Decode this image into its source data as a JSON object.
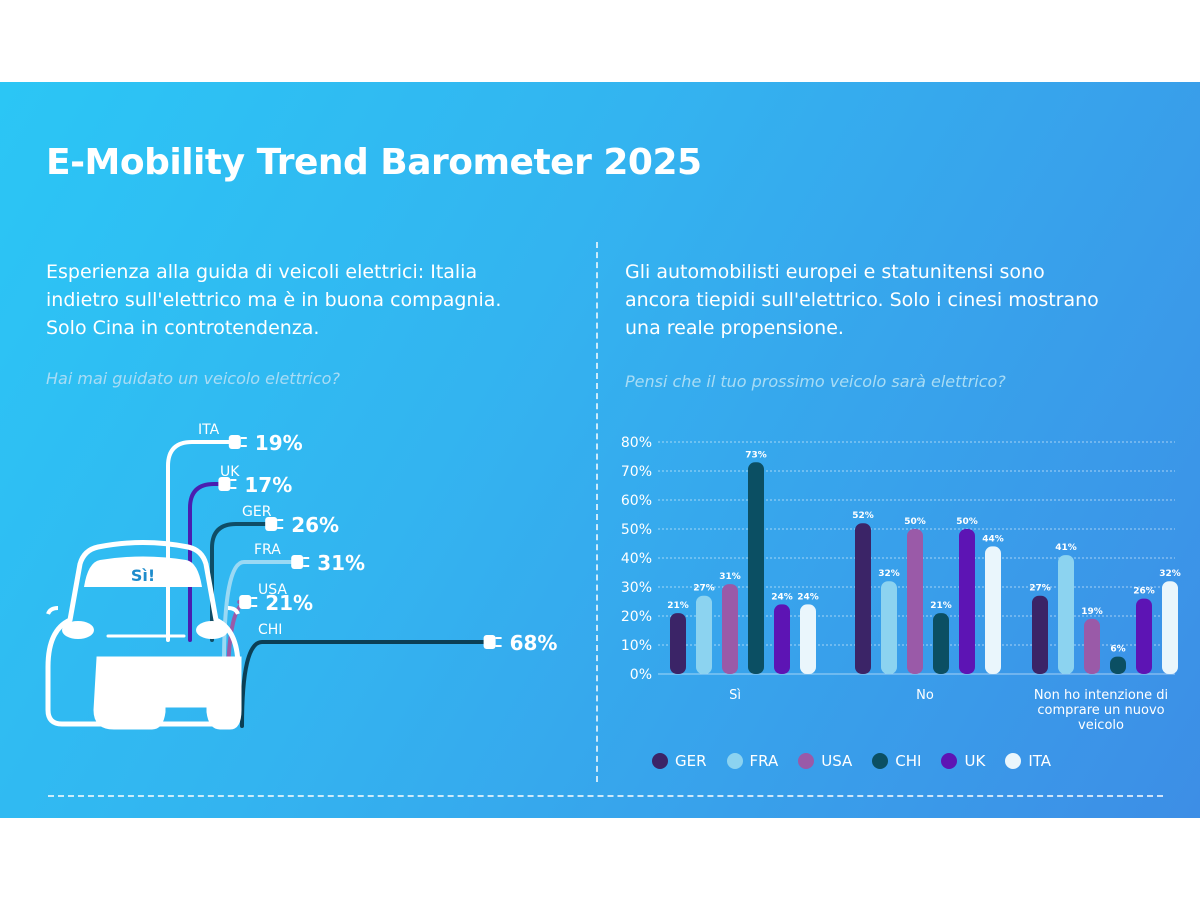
{
  "title": "E-Mobility Trend Barometer 2025",
  "left": {
    "subtitle_lines": [
      "Esperienza alla guida di veicoli elettrici: Italia",
      "indietro sull'elettrico ma è in buona compagnia.",
      "Solo Cina in controtendenza."
    ],
    "question": "Hai mai guidato un veicolo elettrico?",
    "car_label": "Sì!"
  },
  "right": {
    "subtitle_lines": [
      "Gli automobilisti europei e statunitensi sono",
      "ancora tiepidi sull'elettrico. Solo i cinesi mostrano",
      "una reale propensione."
    ],
    "question": "Pensi che il tuo prossimo veicolo sarà elettrico?"
  },
  "colors": {
    "GER": "#3b2467",
    "FRA": "#8cd3f0",
    "USA": "#9a5aa8",
    "CHI": "#0b4f63",
    "UK": "#5d14b4",
    "ITA": "#eaf6fc"
  },
  "chart_data": [
    {
      "type": "bar",
      "title": "Hai mai guidato un veicolo elettrico?",
      "categories": [
        "ITA",
        "UK",
        "GER",
        "FRA",
        "USA",
        "CHI"
      ],
      "values": [
        19,
        17,
        26,
        31,
        21,
        68
      ],
      "value_labels": [
        "19%",
        "17%",
        "26%",
        "31%",
        "21%",
        "68%"
      ],
      "line_colors": [
        "#ffffff",
        "#4a1eb0",
        "#0f4d66",
        "#9ad9f4",
        "#9a5aa8",
        "#0b3f55"
      ]
    },
    {
      "type": "bar",
      "title": "Pensi che il tuo prossimo veicolo sarà elettrico?",
      "categories": [
        "Sì",
        "No",
        "Non ho intenzione di comprare un nuovo veicolo"
      ],
      "category_lines": [
        [
          "Sì"
        ],
        [
          "No"
        ],
        [
          "Non ho intenzione di",
          "comprare un nuovo",
          "veicolo"
        ]
      ],
      "series": [
        {
          "name": "GER",
          "values": [
            21,
            52,
            27
          ]
        },
        {
          "name": "FRA",
          "values": [
            27,
            32,
            41
          ]
        },
        {
          "name": "USA",
          "values": [
            31,
            50,
            19
          ]
        },
        {
          "name": "CHI",
          "values": [
            73,
            21,
            6
          ]
        },
        {
          "name": "UK",
          "values": [
            24,
            50,
            26
          ]
        },
        {
          "name": "ITA",
          "values": [
            24,
            44,
            32
          ]
        }
      ],
      "y_ticks": [
        "0%",
        "10%",
        "20%",
        "30%",
        "40%",
        "50%",
        "60%",
        "70%",
        "80%"
      ],
      "ylim": [
        0,
        80
      ],
      "grid": true,
      "legend": "bottom"
    }
  ]
}
